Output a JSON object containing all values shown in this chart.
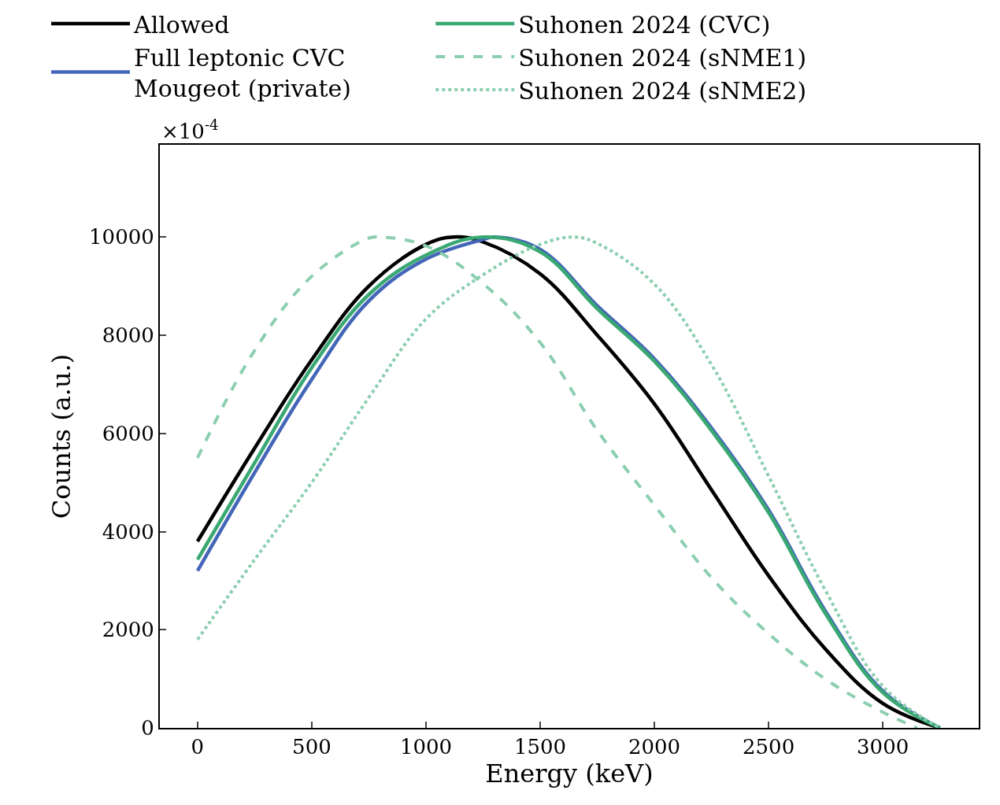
{
  "chart_data": {
    "type": "line",
    "xlabel": "Energy (keV)",
    "ylabel": "Counts (a.u.)",
    "annotations": [
      "×10$^{-4}$"
    ],
    "xlim": [
      -165,
      3420
    ],
    "xticks": [
      0,
      500,
      1000,
      1500,
      2000,
      2500,
      3000
    ],
    "ylim": [
      0,
      11880
    ],
    "yticks": [
      0,
      2000,
      4000,
      6000,
      8000,
      10000
    ],
    "legend": "top",
    "marker": "none",
    "series": [
      {
        "name": "Allowed",
        "color": "#000000",
        "line_style": "solid",
        "x": [
          0,
          250,
          500,
          750,
          1000,
          1120,
          1250,
          1500,
          1750,
          2000,
          2250,
          2500,
          2750,
          3000,
          3250
        ],
        "values": [
          3800,
          5700,
          7500,
          9000,
          9850,
          10000,
          9900,
          9250,
          8000,
          6600,
          4850,
          3100,
          1600,
          500,
          0
        ]
      },
      {
        "name": "Full leptonic CVC\nMougeot (private)",
        "color": "#4466b8",
        "line_style": "solid",
        "x": [
          0,
          250,
          500,
          750,
          1000,
          1250,
          1300,
          1500,
          1750,
          2000,
          2250,
          2500,
          2750,
          3000,
          3250
        ],
        "values": [
          3200,
          5200,
          7100,
          8700,
          9550,
          9950,
          10000,
          9750,
          8600,
          7520,
          6110,
          4440,
          2370,
          750,
          0
        ]
      },
      {
        "name": "Suhonen 2024 (CVC)",
        "color": "#3aa872",
        "line_style": "solid",
        "x": [
          0,
          250,
          500,
          750,
          1000,
          1250,
          1500,
          1750,
          2000,
          2250,
          2500,
          2750,
          3000,
          3250
        ],
        "values": [
          3430,
          5400,
          7340,
          8830,
          9630,
          10000,
          9700,
          8540,
          7470,
          6060,
          4390,
          2320,
          720,
          0
        ]
      },
      {
        "name": "Suhonen 2024 (sNME1)",
        "color": "#8ccfb0",
        "line_style": "dashed",
        "x": [
          0,
          250,
          500,
          750,
          800,
          1000,
          1250,
          1500,
          1750,
          2000,
          2250,
          2500,
          2750,
          3000,
          3150
        ],
        "values": [
          5500,
          7690,
          9200,
          9980,
          10000,
          9820,
          9050,
          7850,
          6060,
          4540,
          3060,
          1920,
          990,
          320,
          0
        ]
      },
      {
        "name": "Suhonen 2024 (sNME2)",
        "color": "#8ccfb0",
        "line_style": "dotted",
        "x": [
          0,
          250,
          500,
          750,
          1000,
          1250,
          1500,
          1650,
          1750,
          2000,
          2250,
          2500,
          2750,
          3000,
          3250
        ],
        "values": [
          1800,
          3430,
          5000,
          6730,
          8330,
          9230,
          9850,
          10000,
          9870,
          9040,
          7400,
          5130,
          2790,
          850,
          0
        ]
      }
    ]
  }
}
